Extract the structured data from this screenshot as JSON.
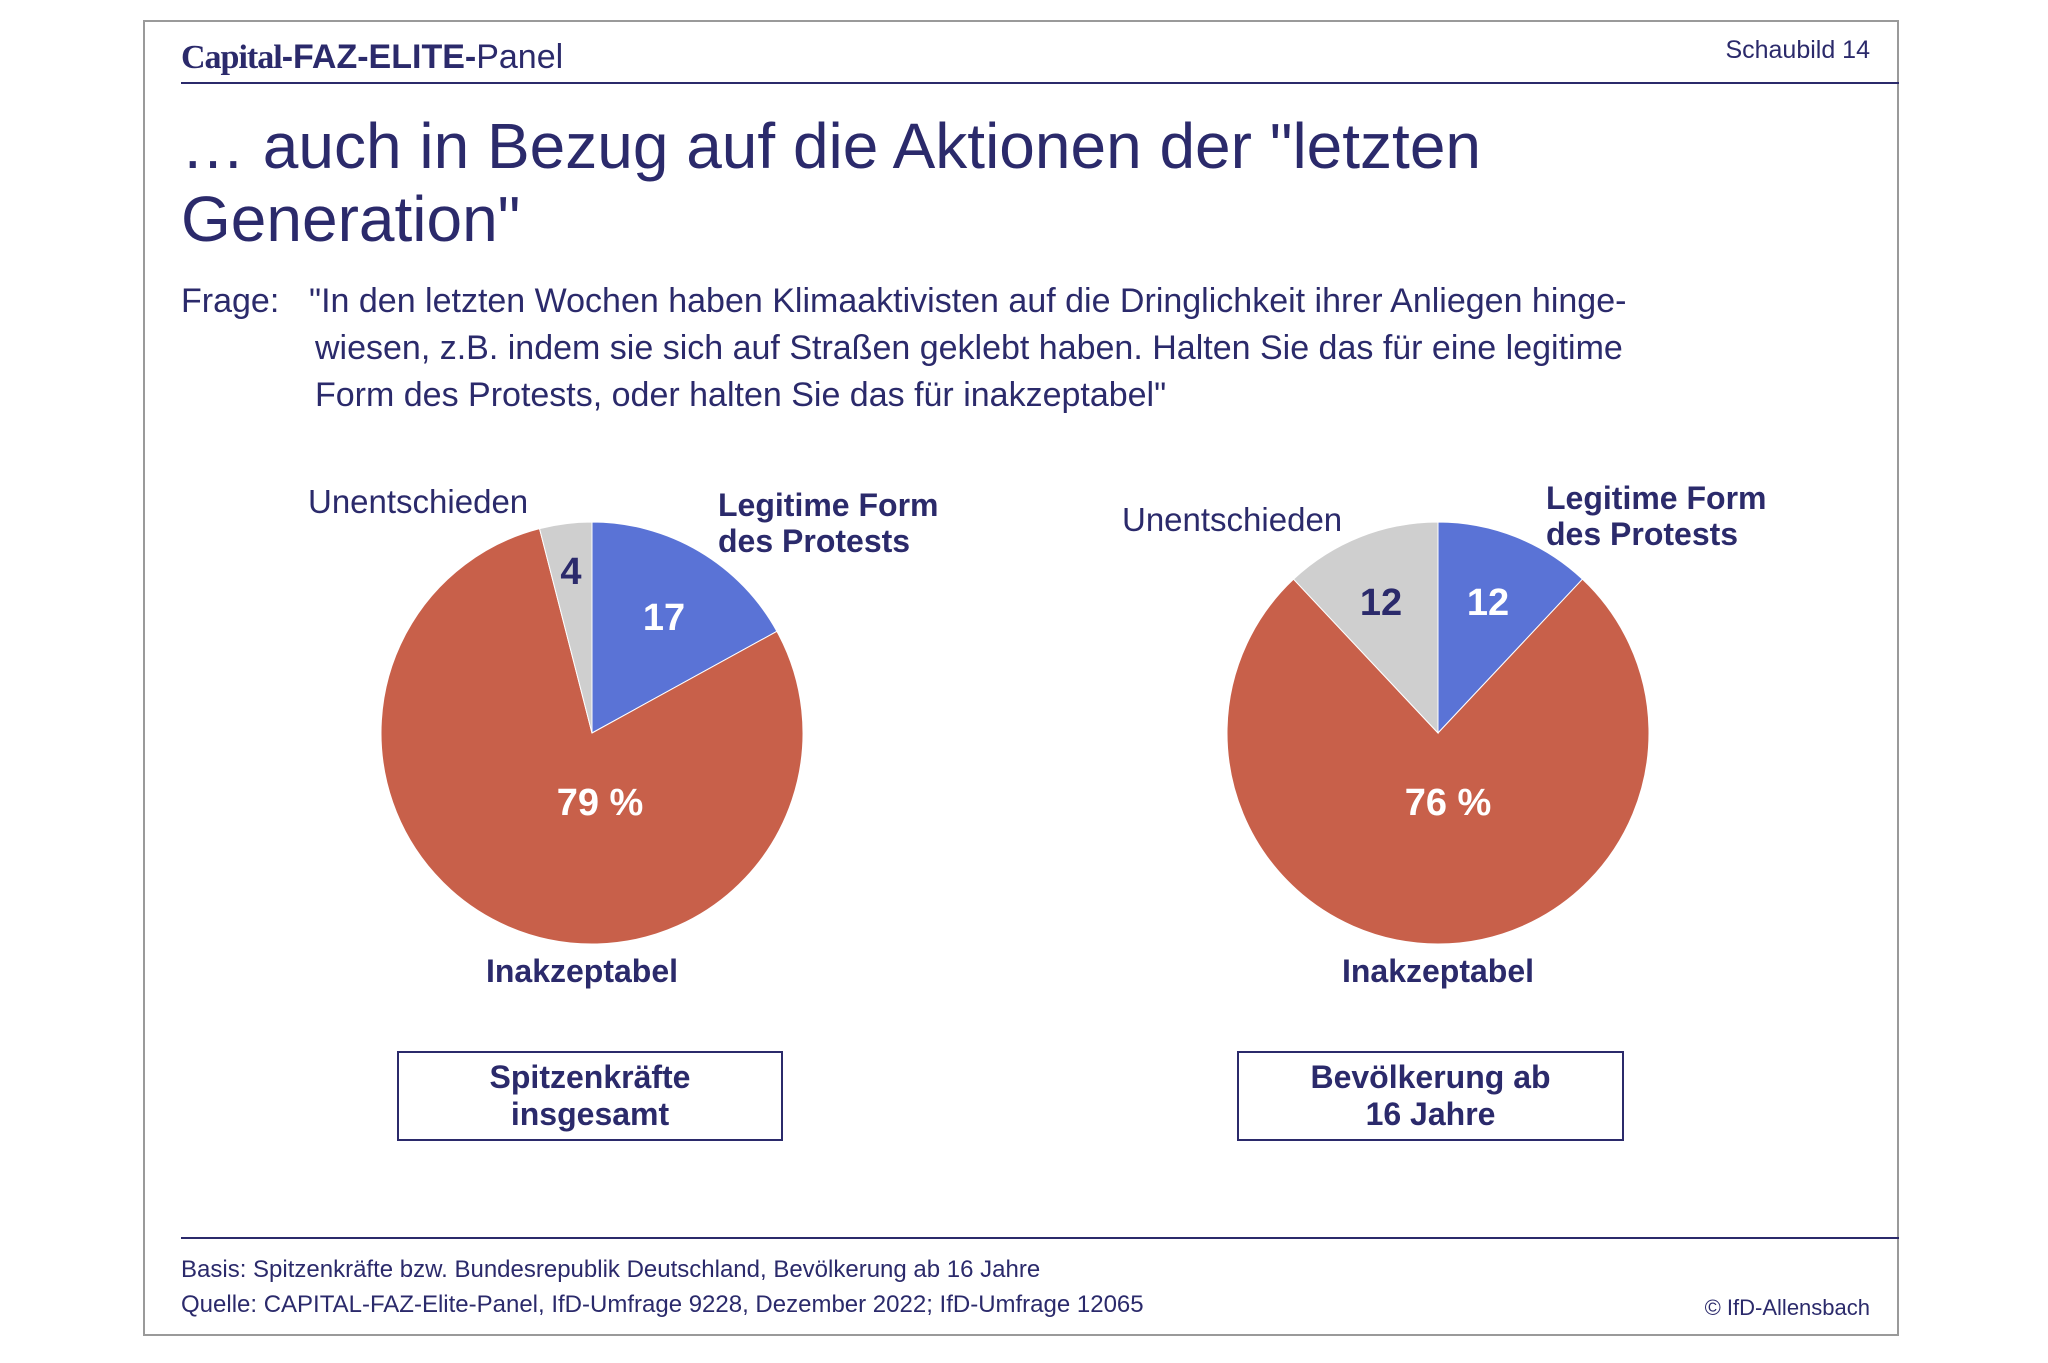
{
  "header": {
    "brand_capital": "Capital",
    "brand_faz": "-FAZ-ELITE-",
    "brand_panel": "Panel",
    "schaubild": "Schaubild 14"
  },
  "title_lines": [
    "… auch in Bezug auf die Aktionen der \"letzten",
    "Generation\""
  ],
  "question": {
    "label": "Frage:",
    "lines": [
      "\"In den letzten Wochen haben Klimaaktivisten auf die Dringlichkeit ihrer Anliegen hinge-",
      "wiesen, z.B. indem sie sich auf Straßen geklebt haben. Halten Sie das für eine legitime",
      "Form des Protests, oder halten Sie das für inakzeptabel\""
    ]
  },
  "colors": {
    "navy": "#2b2a6b",
    "legitim": "#5a73d6",
    "inakzeptabel": "#c8604a",
    "unentschieden": "#cfcfcf"
  },
  "chart_data": [
    {
      "type": "pie",
      "group_label": [
        "Spitzenkräfte",
        "insgesamt"
      ],
      "slices": [
        {
          "key": "legitim",
          "label": [
            "Legitime Form",
            "des Protests"
          ],
          "value": 17,
          "value_label": "17"
        },
        {
          "key": "inakzeptabel",
          "label": [
            "Inakzeptabel"
          ],
          "value": 79,
          "value_label": "79 %"
        },
        {
          "key": "unentschieden",
          "label": [
            "Unentschieden"
          ],
          "value": 4,
          "value_label": "4"
        }
      ]
    },
    {
      "type": "pie",
      "group_label": [
        "Bevölkerung ab",
        "16 Jahre"
      ],
      "slices": [
        {
          "key": "legitim",
          "label": [
            "Legitime Form",
            "des Protests"
          ],
          "value": 12,
          "value_label": "12"
        },
        {
          "key": "inakzeptabel",
          "label": [
            "Inakzeptabel"
          ],
          "value": 76,
          "value_label": "76 %"
        },
        {
          "key": "unentschieden",
          "label": [
            "Unentschieden"
          ],
          "value": 12,
          "value_label": "12"
        }
      ]
    }
  ],
  "footer": {
    "basis": "Basis: Spitzenkräfte bzw. Bundesrepublik Deutschland, Bevölkerung ab 16 Jahre",
    "quelle": "Quelle: CAPITAL-FAZ-Elite-Panel, IfD-Umfrage 9228, Dezember 2022; IfD-Umfrage 12065",
    "copyright": "© IfD-Allensbach"
  }
}
